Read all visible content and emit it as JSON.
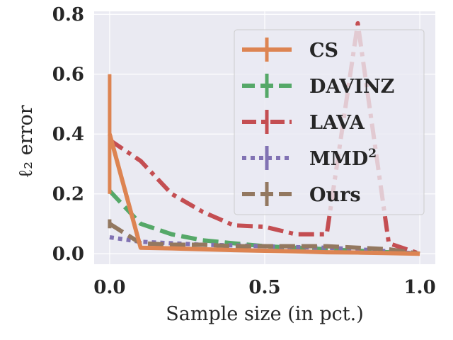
{
  "chart_data": {
    "type": "line",
    "title": "",
    "xlabel": "Sample size (in pct.)",
    "ylabel": "ℓ₂ error",
    "xlim": [
      -0.05,
      1.05
    ],
    "ylim": [
      -0.035,
      0.81
    ],
    "xticks": [
      0.0,
      0.5,
      1.0
    ],
    "xtick_labels": [
      "0.0",
      "0.5",
      "1.0"
    ],
    "yticks": [
      0.0,
      0.2,
      0.4,
      0.6,
      0.8
    ],
    "ytick_labels": [
      "0.0",
      "0.2",
      "0.4",
      "0.6",
      "0.8"
    ],
    "grid": true,
    "legend_position": "upper right",
    "series": [
      {
        "name": "LAVA",
        "legend_label": "LAVA",
        "color": "#c44e52",
        "style": "dashdot",
        "x": [
          0.0,
          0.1,
          0.2,
          0.3,
          0.4,
          0.5,
          0.6,
          0.7,
          0.8,
          0.9,
          1.0
        ],
        "y": [
          0.38,
          0.31,
          0.2,
          0.14,
          0.095,
          0.09,
          0.065,
          0.065,
          0.77,
          0.035,
          0.0
        ],
        "error": [
          0.0,
          0.0,
          0.0,
          0.0,
          0.0,
          0.0,
          0.0,
          0.0,
          0.0,
          0.0,
          0.0
        ]
      },
      {
        "name": "DAVINZ",
        "legend_label": "DAVINZ",
        "color": "#55a868",
        "style": "dashed",
        "x": [
          0.0,
          0.1,
          0.2,
          0.3,
          0.4,
          0.5,
          0.6,
          0.7,
          0.8,
          0.9,
          1.0
        ],
        "y": [
          0.21,
          0.1,
          0.065,
          0.045,
          0.035,
          0.025,
          0.02,
          0.015,
          0.01,
          0.005,
          0.0
        ],
        "error": [
          0.0,
          0.0,
          0.0,
          0.0,
          0.0,
          0.0,
          0.0,
          0.0,
          0.0,
          0.0,
          0.0
        ]
      },
      {
        "name": "MMD²",
        "legend_label": "MMD",
        "legend_sup": "2",
        "color": "#8172b3",
        "style": "dotted",
        "x": [
          0.0,
          0.1,
          0.2,
          0.3,
          0.4,
          0.5,
          0.6,
          0.7,
          0.8,
          0.9,
          1.0
        ],
        "y": [
          0.055,
          0.04,
          0.035,
          0.03,
          0.028,
          0.025,
          0.022,
          0.02,
          0.015,
          0.008,
          0.0
        ],
        "error": [
          0.0,
          0.0,
          0.0,
          0.0,
          0.0,
          0.0,
          0.0,
          0.0,
          0.0,
          0.0,
          0.0
        ]
      },
      {
        "name": "Ours",
        "legend_label": "Ours",
        "color": "#937860",
        "style": "dashed",
        "x": [
          0.0,
          0.1,
          0.2,
          0.3,
          0.4,
          0.5,
          0.6,
          0.7,
          0.8,
          0.9,
          1.0
        ],
        "y": [
          0.1,
          0.035,
          0.03,
          0.03,
          0.025,
          0.025,
          0.025,
          0.025,
          0.02,
          0.015,
          0.0
        ],
        "error": [
          0.015,
          0.0,
          0.0,
          0.0,
          0.0,
          0.0,
          0.0,
          0.0,
          0.0,
          0.0,
          0.0
        ]
      },
      {
        "name": "CS",
        "legend_label": "CS",
        "color": "#dd8452",
        "style": "solid",
        "x": [
          0.0,
          0.1,
          0.2,
          0.3,
          0.4,
          0.5,
          0.6,
          0.7,
          0.8,
          0.9,
          1.0
        ],
        "y": [
          0.4,
          0.02,
          0.018,
          0.015,
          0.012,
          0.01,
          0.008,
          0.005,
          0.004,
          0.002,
          0.0
        ],
        "error": [
          0.2,
          0.0,
          0.0,
          0.0,
          0.0,
          0.0,
          0.0,
          0.0,
          0.0,
          0.0,
          0.0
        ]
      }
    ],
    "legend_order": [
      "CS",
      "DAVINZ",
      "LAVA",
      "MMD²",
      "Ours"
    ]
  }
}
